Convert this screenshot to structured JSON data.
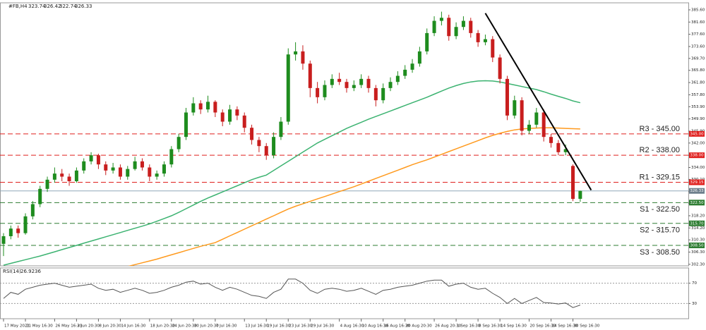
{
  "chart_data": [
    {
      "type": "candlestick",
      "title": "#FB,H4",
      "categories": [
        "17 May 2021",
        null,
        null,
        "21 May 16:30",
        null,
        null,
        null,
        "26 May 16:30",
        null,
        null,
        "2 Jun 20:30",
        null,
        null,
        "8 Jun 20:30",
        null,
        null,
        "14 Jun 16:30",
        null,
        null,
        null,
        "18 Jun 20:30",
        null,
        null,
        "24 Jun 20:30",
        null,
        null,
        "30 Jun 20:30",
        null,
        null,
        "7 Jul 16:30",
        null,
        null,
        null,
        "13 Jul 16:30",
        null,
        null,
        "19 Jul 16:30",
        null,
        null,
        "23 Jul 16:30",
        null,
        null,
        "29 Jul 16:30",
        null,
        null,
        null,
        "4 Aug 16:30",
        null,
        null,
        "10 Aug 16:30",
        null,
        null,
        "16 Aug 16:30",
        null,
        null,
        "20 Aug 20:30",
        null,
        null,
        null,
        "26 Aug 20:30",
        null,
        null,
        "1 Sep 16:30",
        null,
        null,
        "8 Sep 16:30",
        null,
        null,
        "14 Sep 16:30",
        null,
        null,
        null,
        "20 Sep 16:30",
        null,
        null,
        "24 Sep 16:30",
        null,
        null,
        "30 Sep 16:30",
        null
      ],
      "open": [
        309,
        311.5,
        314,
        312.5,
        318,
        322,
        327,
        330,
        332,
        331,
        329.5,
        333,
        336,
        338,
        335,
        333,
        334,
        331,
        333.5,
        336,
        334,
        331,
        332,
        335,
        340,
        344,
        352,
        355,
        353,
        355.5,
        352,
        349,
        353,
        351,
        347,
        343,
        341,
        338,
        344,
        349,
        371,
        372,
        368,
        360,
        357,
        361,
        363,
        362,
        360,
        361,
        363,
        360,
        356,
        360,
        362,
        364,
        366,
        368,
        372,
        378,
        382,
        383,
        377,
        380,
        382,
        378,
        375,
        376,
        370,
        363,
        351,
        356,
        346,
        348,
        352,
        344,
        342,
        339,
        334.5,
        323.74
      ],
      "high": [
        312.5,
        315,
        315,
        319,
        323,
        328,
        331,
        334,
        333.5,
        332,
        334,
        337,
        339,
        338.5,
        336,
        335.5,
        335,
        334.5,
        337.5,
        337,
        335,
        333,
        336,
        341,
        345,
        353.5,
        357,
        356,
        357.5,
        356,
        353,
        354.5,
        354,
        352,
        348,
        344,
        342,
        345.5,
        350.5,
        373,
        375,
        374,
        369,
        362,
        362.5,
        364.5,
        365,
        363,
        362.5,
        364.5,
        364,
        361,
        361.5,
        363.5,
        365.5,
        367.5,
        369.5,
        373.5,
        379.5,
        383.5,
        385,
        384,
        381.5,
        383.5,
        383,
        379,
        377.5,
        377,
        371,
        364,
        357.5,
        357,
        349.5,
        353.5,
        353,
        345,
        343,
        341.5,
        335,
        326.42
      ],
      "low": [
        305,
        310.5,
        311,
        312,
        317,
        321,
        326,
        329,
        329.5,
        328,
        329,
        332,
        335,
        333.5,
        331.5,
        332,
        330,
        330,
        333,
        333,
        329.5,
        330,
        331,
        334,
        339,
        343,
        351,
        351.5,
        352,
        350.5,
        347.5,
        348,
        349.5,
        345.5,
        341.5,
        339,
        336.5,
        337,
        343,
        348,
        369,
        366,
        357,
        355,
        356,
        360,
        361,
        358.5,
        359,
        360,
        358.5,
        354,
        355,
        359,
        361,
        363,
        365,
        367,
        371,
        377,
        380.5,
        375.5,
        376,
        379,
        376.5,
        373.5,
        374,
        368.5,
        361.5,
        349.5,
        350,
        344.5,
        345,
        347,
        342.5,
        340.5,
        338,
        338,
        323,
        322.74
      ],
      "close": [
        311.5,
        314,
        312.5,
        318,
        322,
        327,
        330,
        332,
        331,
        329.5,
        333,
        336,
        338,
        335,
        333,
        334,
        331,
        333.5,
        336,
        334,
        331,
        332,
        335,
        340,
        344,
        352,
        355,
        353,
        355.5,
        352,
        349,
        353,
        351,
        347,
        343,
        341,
        338,
        344,
        349,
        371,
        372,
        368,
        360,
        357,
        361,
        363,
        362,
        360,
        361,
        363,
        360,
        356,
        360,
        362,
        364,
        366,
        368,
        372,
        378,
        382,
        383,
        377,
        380,
        382,
        378,
        375,
        376,
        370,
        363,
        351,
        356,
        346,
        348,
        352,
        344,
        342,
        339,
        340,
        323.7,
        326.33
      ],
      "up_color": "#1e8c1e",
      "down_color": "#c81e1e",
      "moving_averages": [
        {
          "color": "#3cb371",
          "values": [
            302.0,
            302.6,
            303.2,
            303.8,
            304.4,
            305,
            305.7,
            306.4,
            307.1,
            307.8,
            308.5,
            309.2,
            309.9,
            310.6,
            311.3,
            312,
            312.7,
            313.4,
            314.1,
            314.8,
            315.5,
            316.4,
            317.3,
            318.2,
            319.3,
            320.5,
            321.7,
            322.9,
            324,
            325,
            326,
            327,
            328,
            329,
            330,
            330.8,
            331.5,
            333,
            334.5,
            336,
            337.5,
            339,
            340.5,
            342,
            343.2,
            344.4,
            345.6,
            346.8,
            347.8,
            348.8,
            349.8,
            350.7,
            351.6,
            352.5,
            353.4,
            354.3,
            355.2,
            356.1,
            357,
            358,
            359,
            360,
            360.8,
            361.5,
            362,
            362.3,
            362.4,
            362.3,
            362,
            361.5,
            361,
            360.5,
            360,
            359.5,
            358.8,
            358,
            357.3,
            356.6,
            355.8,
            355.2
          ]
        },
        {
          "color": "#ff9a1e",
          "values": [
            null,
            null,
            null,
            null,
            null,
            null,
            null,
            null,
            null,
            null,
            null,
            null,
            null,
            null,
            null,
            null,
            301.0,
            301.6,
            302.2,
            302.8,
            303.4,
            304,
            304.7,
            305.4,
            306.1,
            306.8,
            307.5,
            308.2,
            308.8,
            309.4,
            310.5,
            311.6,
            312.7,
            313.8,
            314.9,
            316,
            317.1,
            318.2,
            319.3,
            320.4,
            321.3,
            322.1,
            322.9,
            323.7,
            324.5,
            325.3,
            326.1,
            326.9,
            327.7,
            328.6,
            329.5,
            330.4,
            331.3,
            332.2,
            333.1,
            334,
            334.9,
            335.7,
            336.5,
            337.4,
            338.3,
            339.2,
            340.1,
            341,
            341.9,
            342.8,
            343.7,
            344.5,
            345.2,
            345.8,
            346.3,
            346.6,
            346.8,
            346.9,
            347,
            347,
            346.9,
            346.8,
            346.7,
            346.6
          ]
        }
      ],
      "trendline": {
        "color": "#000000",
        "x": [
          66,
          80.5
        ],
        "y": [
          384.5,
          326.6
        ]
      },
      "levels": [
        {
          "name": "R3 - 345.00",
          "value": 345,
          "value_label": "345.00",
          "color": "#e0201e"
        },
        {
          "name": "R2 - 338.00",
          "value": 338,
          "value_label": "338.00",
          "color": "#e0201e"
        },
        {
          "name": "R1 - 329.15",
          "value": 329.15,
          "value_label": "329.15",
          "color": "#e0201e"
        },
        {
          "name": "S1 - 322.50",
          "value": 322.5,
          "value_label": "322.50",
          "color": "#2e7d32"
        },
        {
          "name": "S2 - 315.70",
          "value": 315.7,
          "value_label": "315.70",
          "color": "#2e7d32"
        },
        {
          "name": "S3 - 308.50",
          "value": 308.5,
          "value_label": "308.50",
          "color": "#2e7d32"
        }
      ],
      "last_price_color": "#90a8b8",
      "ylim": [
        301.8,
        387.9
      ],
      "yticks": [
        {
          "value": 385.6,
          "label": "385.60"
        },
        {
          "value": 381.6,
          "label": "381.60"
        },
        {
          "value": 377.6,
          "label": "377.60"
        },
        {
          "value": 373.6,
          "label": "373.60"
        },
        {
          "value": 369.7,
          "label": "369.70"
        },
        {
          "value": 365.8,
          "label": "365.80"
        },
        {
          "value": 361.8,
          "label": "361.80"
        },
        {
          "value": 357.8,
          "label": "357.80"
        },
        {
          "value": 353.9,
          "label": "353.90"
        },
        {
          "value": 349.9,
          "label": "349.90"
        },
        {
          "value": 345.9,
          "label": "345.90"
        },
        {
          "value": 342,
          "label": "342.00"
        },
        {
          "value": 338,
          "label": "338.00"
        },
        {
          "value": 334,
          "label": "334.00"
        },
        {
          "value": 330.1,
          "label": "330.10"
        },
        {
          "value": 326.1,
          "label": "326.10"
        },
        {
          "value": 322.2,
          "label": "322.20"
        },
        {
          "value": 318.2,
          "label": "318.20"
        },
        {
          "value": 314.2,
          "label": "314.20"
        },
        {
          "value": 310.3,
          "label": "310.30"
        },
        {
          "value": 306.3,
          "label": "306.30"
        },
        {
          "value": 302.3,
          "label": "302.30"
        }
      ]
    },
    {
      "type": "line",
      "title": "RSI(14)",
      "color": "#555555",
      "values": [
        40,
        52,
        48,
        58,
        62,
        66,
        68,
        70,
        66,
        62,
        64,
        66,
        68,
        60,
        56,
        58,
        52,
        56,
        60,
        56,
        50,
        52,
        56,
        62,
        66,
        72,
        74,
        68,
        70,
        62,
        56,
        62,
        58,
        52,
        46,
        44,
        40,
        52,
        58,
        78,
        78,
        70,
        56,
        50,
        58,
        60,
        58,
        54,
        56,
        60,
        54,
        48,
        56,
        58,
        62,
        64,
        66,
        70,
        74,
        76,
        76,
        64,
        68,
        70,
        62,
        58,
        60,
        50,
        42,
        30,
        40,
        30,
        36,
        42,
        32,
        31,
        29,
        31,
        22,
        26.9236
      ],
      "ylim": [
        0,
        100
      ],
      "yticks": [
        70,
        30
      ]
    }
  ]
}
